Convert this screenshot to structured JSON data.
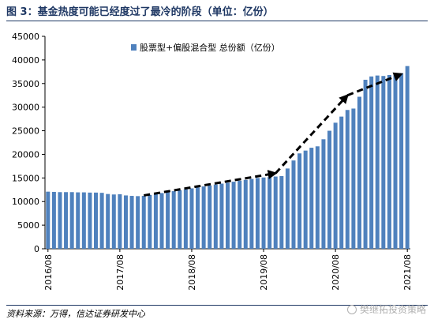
{
  "figure": {
    "title": "图 3：基金热度可能已经度过了最冷的阶段（单位：亿份）",
    "source": "资料来源：万得，信达证券研发中心",
    "watermark": "樊继拓投资策略",
    "watermark_icon": "wechat-icon"
  },
  "chart_data": {
    "type": "bar",
    "legend": "股票型+偏股混合型 总份额（亿份）",
    "legend_position": "top-center",
    "bar_color": "#4f81bd",
    "arrow_color": "#000000",
    "grid": false,
    "ylim": [
      0,
      45000
    ],
    "yticks": [
      0,
      5000,
      10000,
      15000,
      20000,
      25000,
      30000,
      35000,
      40000,
      45000
    ],
    "xtick_labels": [
      "2016/08",
      "2017/08",
      "2018/08",
      "2019/08",
      "2020/08",
      "2021/08"
    ],
    "xtick_bar_index": [
      0,
      12,
      24,
      36,
      48,
      60
    ],
    "categories": [
      "2016/08",
      "2016/09",
      "2016/10",
      "2016/11",
      "2016/12",
      "2017/01",
      "2017/02",
      "2017/03",
      "2017/04",
      "2017/05",
      "2017/06",
      "2017/07",
      "2017/08",
      "2017/09",
      "2017/10",
      "2017/11",
      "2017/12",
      "2018/01",
      "2018/02",
      "2018/03",
      "2018/04",
      "2018/05",
      "2018/06",
      "2018/07",
      "2018/08",
      "2018/09",
      "2018/10",
      "2018/11",
      "2018/12",
      "2019/01",
      "2019/02",
      "2019/03",
      "2019/04",
      "2019/05",
      "2019/06",
      "2019/07",
      "2019/08",
      "2019/09",
      "2019/10",
      "2019/11",
      "2019/12",
      "2020/01",
      "2020/02",
      "2020/03",
      "2020/04",
      "2020/05",
      "2020/06",
      "2020/07",
      "2020/08",
      "2020/09",
      "2020/10",
      "2020/11",
      "2020/12",
      "2021/01",
      "2021/02",
      "2021/03",
      "2021/04",
      "2021/05",
      "2021/06",
      "2021/07",
      "2021/08"
    ],
    "values": [
      12100,
      12050,
      12000,
      12000,
      12000,
      11950,
      11950,
      11900,
      11900,
      11850,
      11600,
      11500,
      11550,
      11300,
      11200,
      11150,
      11200,
      11400,
      11600,
      11800,
      12000,
      12200,
      12400,
      12600,
      12800,
      13000,
      13200,
      13400,
      13600,
      13800,
      14000,
      14200,
      14400,
      14600,
      14800,
      15000,
      15100,
      15200,
      15300,
      15400,
      17000,
      18700,
      20200,
      20800,
      21400,
      21700,
      23200,
      25000,
      26700,
      28000,
      29400,
      29700,
      32200,
      35800,
      36500,
      36700,
      36600,
      36800,
      37000,
      37200,
      38700
    ],
    "trend_arrows": [
      {
        "from": [
          16,
          11300
        ],
        "to": [
          38,
          16000
        ]
      },
      {
        "from": [
          38,
          16000
        ],
        "to": [
          50,
          32500
        ]
      },
      {
        "from": [
          50,
          32500
        ],
        "to": [
          59,
          37000
        ]
      }
    ]
  }
}
